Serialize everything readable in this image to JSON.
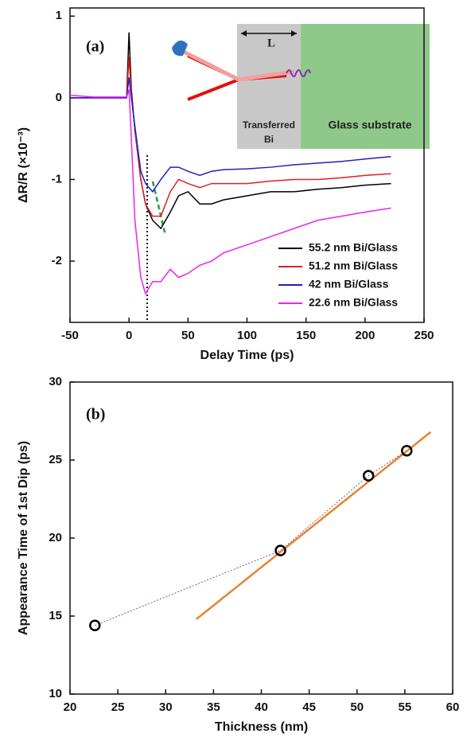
{
  "chart_data": [
    {
      "type": "line",
      "panel": "(a)",
      "xlabel": "Delay Time (ps)",
      "ylabel": "ΔR/R (×10⁻³)",
      "inset": {
        "length": "L",
        "left": [
          "Transferred",
          "Bi"
        ],
        "right": "Glass substrate"
      },
      "x": [
        -50,
        -40,
        -30,
        -20,
        -10,
        -2,
        0,
        2,
        5,
        10,
        14,
        20,
        27,
        35,
        42,
        50,
        60,
        70,
        80,
        100,
        120,
        140,
        160,
        180,
        200,
        222
      ],
      "series": [
        {
          "name": "55.2 nm Bi/Glass",
          "color": "#000000",
          "values": [
            0,
            0,
            0,
            0,
            0,
            0,
            0.8,
            0.1,
            -0.4,
            -1.0,
            -1.3,
            -1.5,
            -1.6,
            -1.4,
            -1.2,
            -1.15,
            -1.3,
            -1.3,
            -1.25,
            -1.2,
            -1.15,
            -1.15,
            -1.12,
            -1.1,
            -1.07,
            -1.05
          ]
        },
        {
          "name": "51.2 nm Bi/Glass",
          "color": "#e02020",
          "values": [
            0,
            0,
            0,
            0,
            0,
            0,
            0.5,
            0.05,
            -0.4,
            -1.0,
            -1.3,
            -1.45,
            -1.45,
            -1.15,
            -1.0,
            -1.05,
            -1.1,
            -1.05,
            -1.05,
            -1.05,
            -1.02,
            -1.0,
            -1.0,
            -0.98,
            -0.95,
            -0.93
          ]
        },
        {
          "name": "42 nm Bi/Glass",
          "color": "#2020c0",
          "values": [
            0,
            0,
            0,
            0,
            0,
            0,
            0.25,
            0.0,
            -0.35,
            -0.9,
            -1.05,
            -1.15,
            -1.0,
            -0.85,
            -0.85,
            -0.9,
            -0.95,
            -0.9,
            -0.88,
            -0.87,
            -0.85,
            -0.82,
            -0.8,
            -0.78,
            -0.75,
            -0.72
          ]
        },
        {
          "name": "22.6 nm Bi/Glass",
          "color": "#ee22ee",
          "values": [
            0.03,
            0.02,
            0.01,
            0.01,
            0.01,
            0.01,
            0.1,
            -0.5,
            -1.5,
            -2.2,
            -2.4,
            -2.25,
            -2.25,
            -2.1,
            -2.2,
            -2.15,
            -2.05,
            -2.0,
            -1.9,
            -1.8,
            -1.7,
            -1.6,
            -1.5,
            -1.45,
            -1.4,
            -1.35
          ]
        }
      ],
      "xlim": [
        -50,
        250
      ],
      "xticks": [
        -50,
        0,
        50,
        100,
        150,
        200,
        250
      ],
      "ylim": [
        -2.75,
        1.1
      ],
      "yticks": [
        -2,
        -1,
        0,
        1
      ]
    },
    {
      "type": "scatter",
      "panel": "(b)",
      "xlabel": "Thickness (nm)",
      "ylabel": "Appearance Time of 1st Dip (ps)",
      "x": [
        22.6,
        42,
        51.2,
        55.2
      ],
      "values": [
        14.4,
        19.2,
        24,
        25.6
      ],
      "color": "#000000",
      "fit": {
        "x": [
          33.2,
          57.7
        ],
        "values": [
          14.8,
          26.8
        ],
        "color": "#e8822e"
      },
      "xlim": [
        20,
        60
      ],
      "xticks": [
        20,
        25,
        30,
        35,
        40,
        45,
        50,
        55,
        60
      ],
      "ylim": [
        10,
        30
      ],
      "yticks": [
        10,
        15,
        20,
        25,
        30
      ]
    }
  ]
}
